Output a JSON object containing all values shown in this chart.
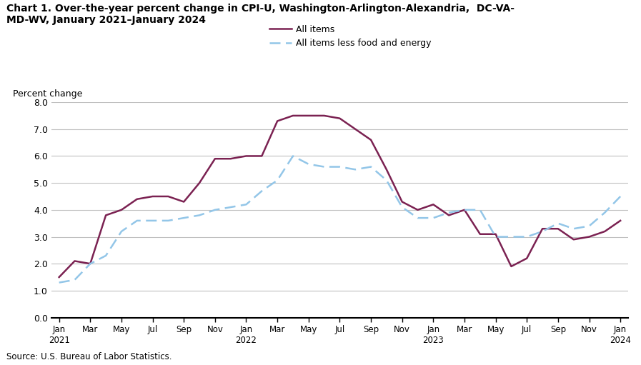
{
  "title": "Chart 1. Over-the-year percent change in CPI-U, Washington-Arlington-Alexandria,  DC-VA-\nMD-WV, January 2021–January 2024",
  "ylabel": "Percent change",
  "source": "Source: U.S. Bureau of Labor Statistics.",
  "ylim": [
    0.0,
    8.0
  ],
  "yticks": [
    0.0,
    1.0,
    2.0,
    3.0,
    4.0,
    5.0,
    6.0,
    7.0,
    8.0
  ],
  "all_items": [
    1.5,
    2.1,
    2.0,
    3.8,
    4.0,
    4.4,
    4.5,
    4.5,
    4.3,
    5.0,
    5.9,
    5.9,
    6.0,
    6.0,
    7.3,
    7.5,
    7.5,
    7.5,
    7.4,
    7.0,
    6.6,
    5.5,
    4.3,
    4.0,
    4.2,
    3.8,
    4.0,
    3.1,
    3.1,
    1.9,
    2.2,
    3.3,
    3.3,
    2.9,
    3.0,
    3.2,
    3.6
  ],
  "all_items_less": [
    1.3,
    1.4,
    2.0,
    2.3,
    3.2,
    3.6,
    3.6,
    3.6,
    3.7,
    3.8,
    4.0,
    4.1,
    4.2,
    4.7,
    5.1,
    6.0,
    5.7,
    5.6,
    5.6,
    5.5,
    5.6,
    5.1,
    4.1,
    3.7,
    3.7,
    3.9,
    4.0,
    4.0,
    3.0,
    3.0,
    3.0,
    3.2,
    3.5,
    3.3,
    3.4,
    3.9,
    4.5
  ],
  "all_items_color": "#7B2252",
  "all_items_less_color": "#93C6E8",
  "background_color": "#ffffff",
  "legend_all_items": "All items",
  "legend_all_items_less": "All items less food and energy",
  "tick_labels": [
    "Jan\n2021",
    "Mar",
    "May",
    "Jul",
    "Sep",
    "Nov",
    "Jan\n2022",
    "Mar",
    "May",
    "Jul",
    "Sep",
    "Nov",
    "Jan\n2023",
    "Mar",
    "May",
    "Jul",
    "Sep",
    "Nov",
    "Jan\n2024"
  ]
}
